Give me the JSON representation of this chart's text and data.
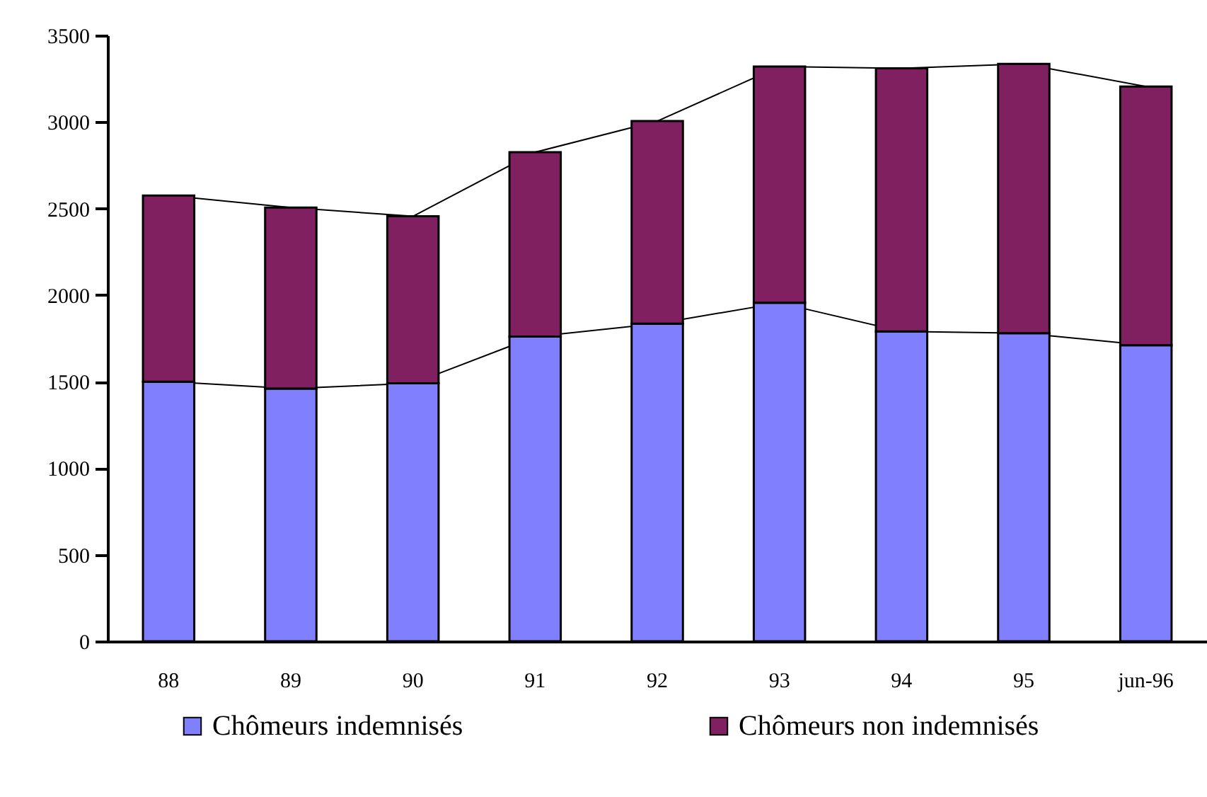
{
  "chart_data": {
    "type": "bar",
    "stacked": true,
    "categories": [
      "88",
      "89",
      "90",
      "91",
      "92",
      "93",
      "94",
      "95",
      "jun-96"
    ],
    "series": [
      {
        "name": "Chômeurs indemnisés",
        "color": "#8080ff",
        "values": [
          1500,
          1460,
          1490,
          1760,
          1835,
          1955,
          1790,
          1780,
          1710
        ]
      },
      {
        "name": "Chômeurs non indemnisés",
        "color": "#802060",
        "values": [
          1075,
          1045,
          965,
          1065,
          1170,
          1365,
          1520,
          1555,
          1495
        ]
      }
    ],
    "ylim": [
      0,
      3500
    ],
    "yticks": [
      0,
      500,
      1000,
      1500,
      2000,
      2500,
      3000,
      3500
    ],
    "grid": false,
    "legend": "bottom"
  }
}
